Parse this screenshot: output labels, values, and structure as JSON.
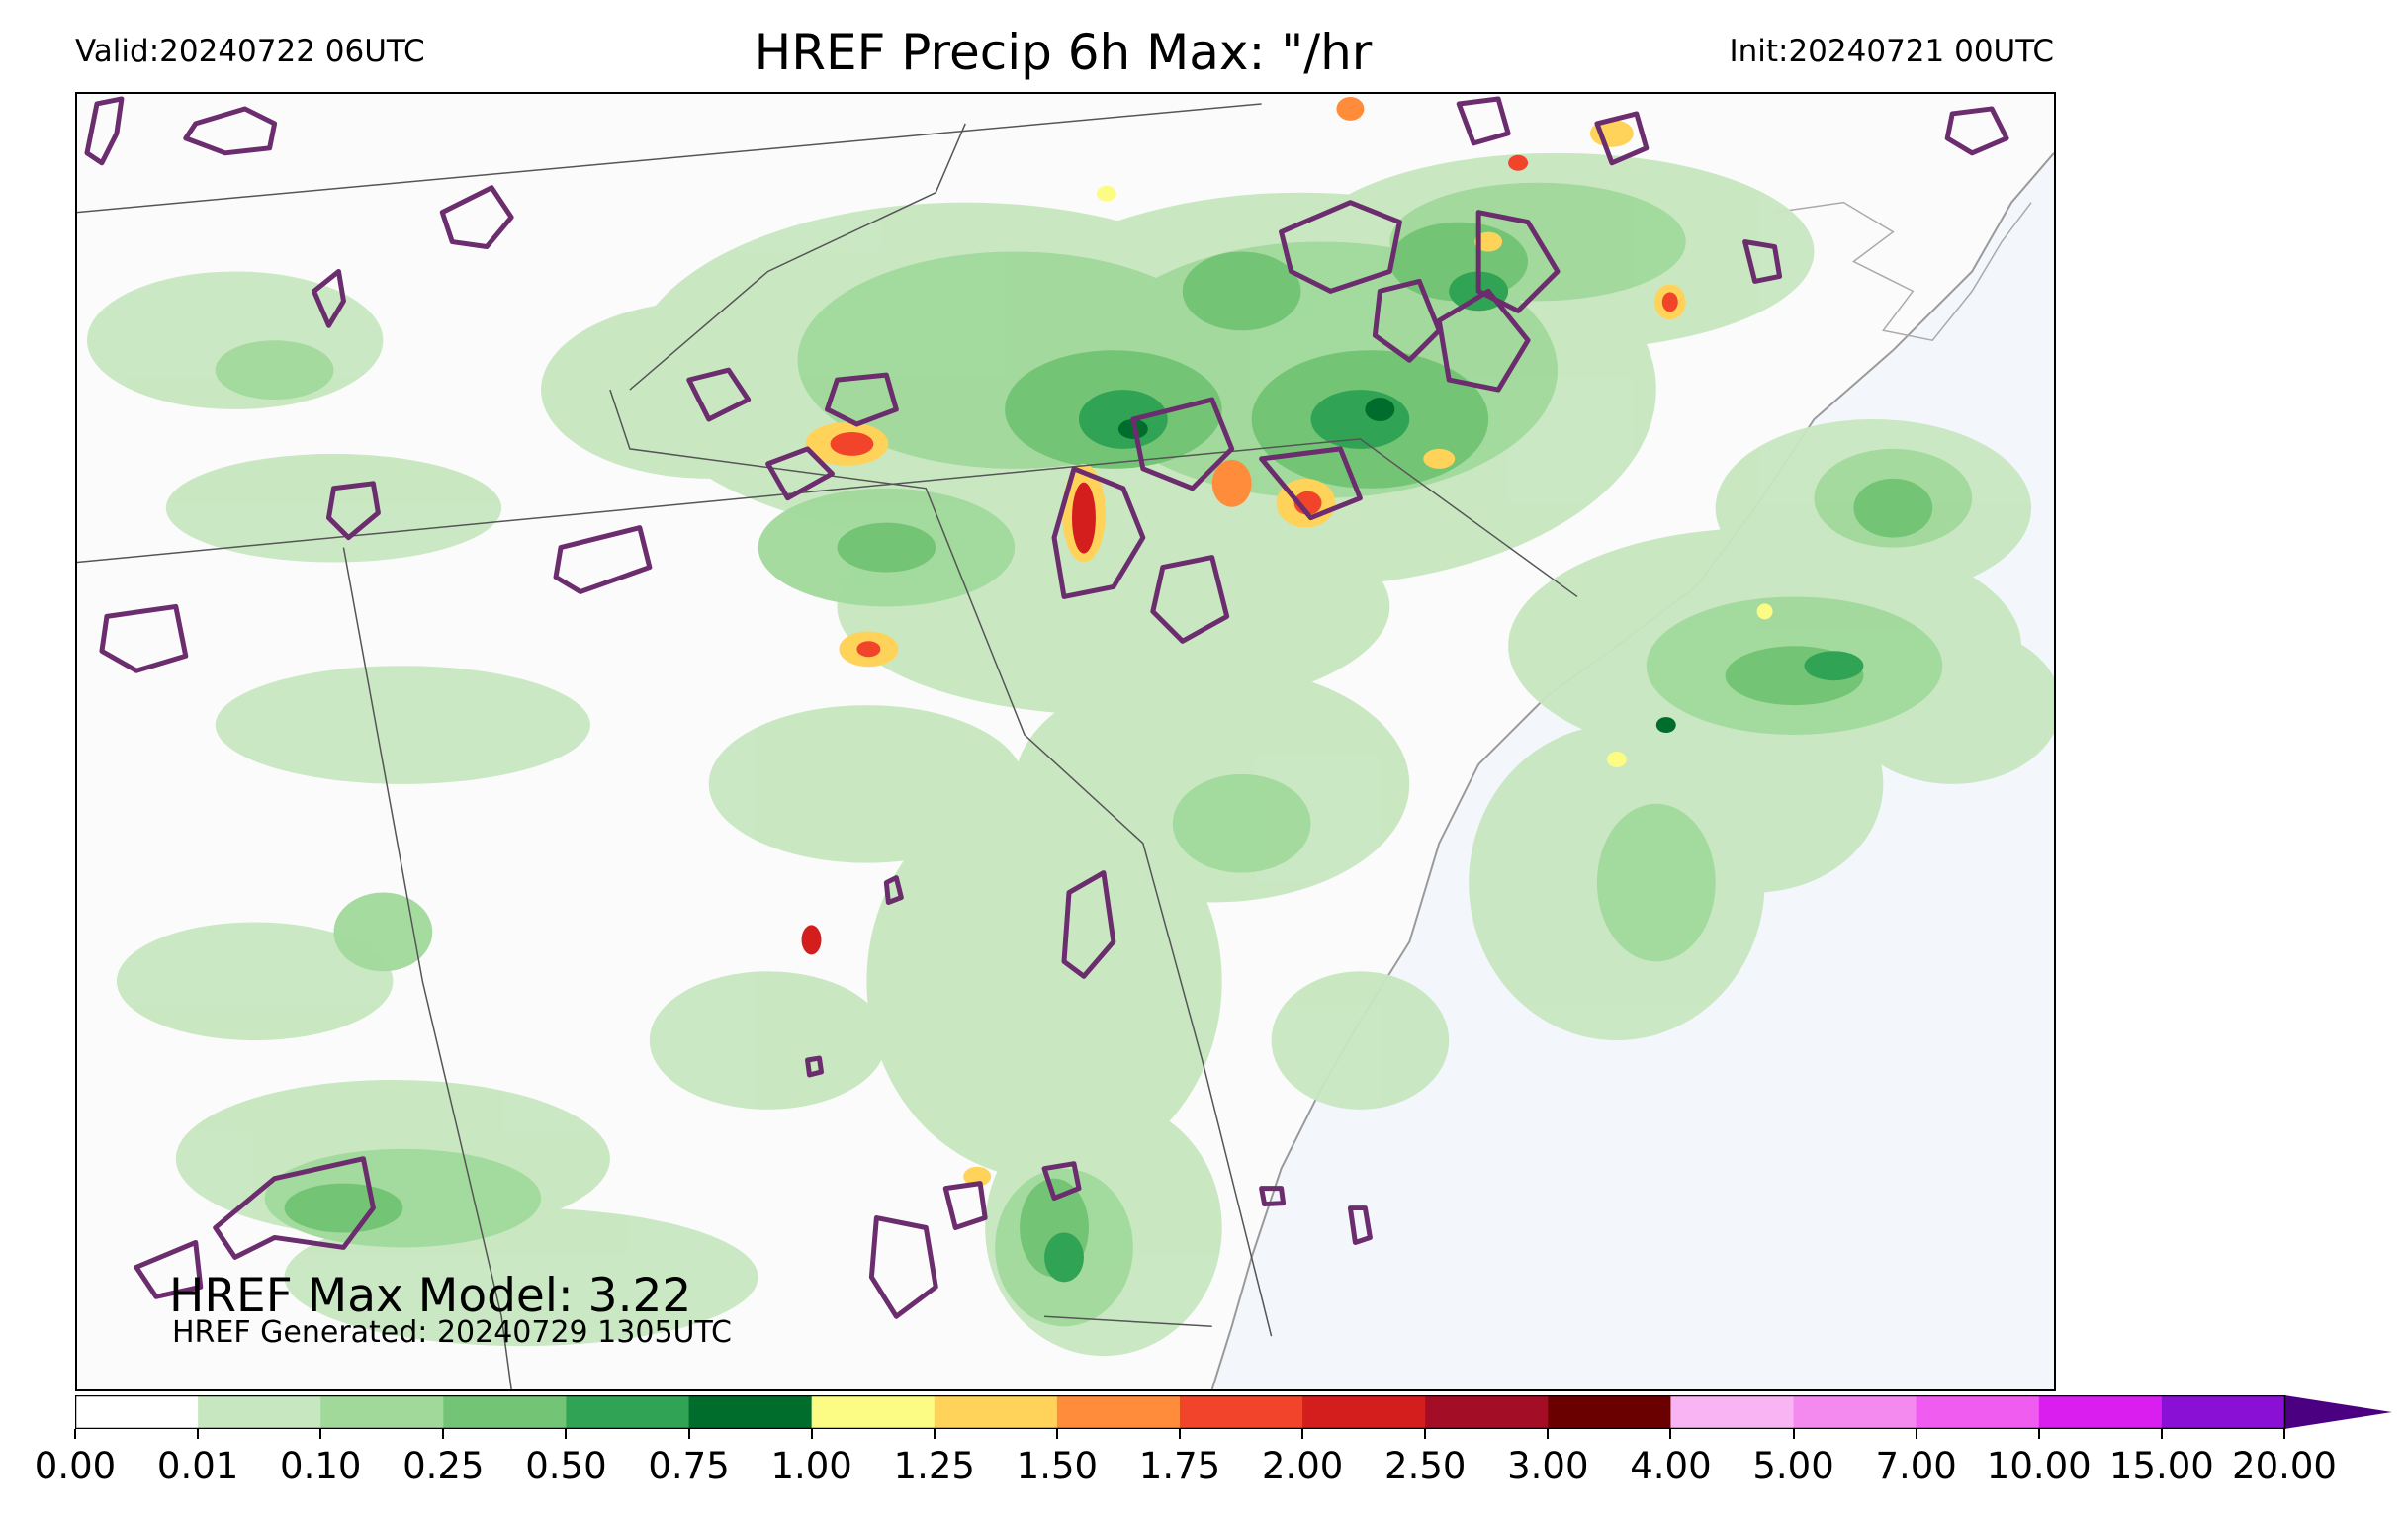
{
  "header": {
    "valid": "Valid:20240722 06UTC",
    "title": "HREF Precip 6h Max: \"/hr",
    "init": "Init:20240721 00UTC"
  },
  "annotations": {
    "max_model": "HREF Max Model: 3.22",
    "generated": "HREF Generated: 20240729 1305UTC"
  },
  "map": {
    "land_color": "#fbfbfb",
    "ocean_color": "#f3f6fb",
    "border_color": "#555555",
    "coast_color": "#9a9a9a",
    "contour_color": "#6b2d6e"
  },
  "colorbar": {
    "levels": [
      "0.00",
      "0.01",
      "0.10",
      "0.25",
      "0.50",
      "0.75",
      "1.00",
      "1.25",
      "1.50",
      "1.75",
      "2.00",
      "2.50",
      "3.00",
      "4.00",
      "5.00",
      "7.00",
      "10.00",
      "15.00",
      "20.00"
    ],
    "colors": [
      "#ffffff",
      "#c7e7c0",
      "#a1d99b",
      "#74c476",
      "#31a354",
      "#006d2c",
      "#fcfc85",
      "#ffd35a",
      "#ff8c3a",
      "#f2442a",
      "#d41e1e",
      "#a30e26",
      "#6b0000",
      "#f9b4f4",
      "#f48af0",
      "#f05cf0",
      "#db1ef0",
      "#8a10d6"
    ],
    "extend_color": "#4b0082"
  }
}
